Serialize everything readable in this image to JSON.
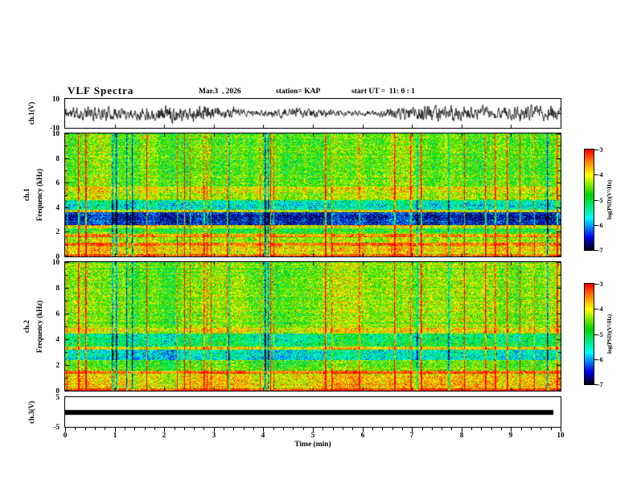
{
  "header": {
    "title": "VLF Spectra",
    "date": "Mar.3  , 2026",
    "station": "station= KAP",
    "start_ut": "start UT =  11: 0 : 1"
  },
  "axes": {
    "time_label": "Time (min)",
    "x_ticks": [
      "0",
      "1",
      "2",
      "3",
      "4",
      "5",
      "6",
      "7",
      "8",
      "9",
      "10"
    ],
    "freq_label": "Frequency (kHz)",
    "spec_y_ticks": [
      "10",
      "8",
      "6",
      "4",
      "2",
      "0"
    ],
    "ch1_wave_label": "ch.1(V)",
    "ch1_wave_ticks": [
      "10",
      "-10"
    ],
    "ch1_spec_label": "ch.1",
    "ch2_spec_label": "ch.2",
    "ch3_wave_label": "ch.3(V)",
    "ch3_wave_ticks": [
      "5",
      "-5"
    ]
  },
  "colorbar": {
    "label": "log(PSD)(V²/Hz)",
    "ticks": [
      "-3",
      "-4",
      "-5",
      "-6",
      "-7"
    ],
    "gradient": [
      [
        0,
        "#000008"
      ],
      [
        0.13,
        "#0000ee"
      ],
      [
        0.32,
        "#00ffff"
      ],
      [
        0.55,
        "#00d400"
      ],
      [
        0.75,
        "#ffff00"
      ],
      [
        0.9,
        "#ff7000"
      ],
      [
        1,
        "#ff0000"
      ]
    ]
  },
  "chart_data": [
    {
      "type": "line",
      "name": "ch1_waveform",
      "ylabel": "ch.1(V)",
      "xlabel": "Time (min)",
      "xlim": [
        0,
        10
      ],
      "ylim": [
        -10,
        10
      ],
      "seed": 11,
      "amp_mean": 3.0,
      "amp_mod": 2.0,
      "description": "dense broadband noise waveform centered at 0 V, typical excursions of 2-5 V with occasional bursts toward ±8 V over the 10-minute record"
    },
    {
      "type": "heatmap",
      "name": "ch1_spectrogram",
      "ylabel": "Frequency (kHz)",
      "xlabel": "Time (min)",
      "xlim": [
        0,
        10
      ],
      "ylim": [
        0,
        10
      ],
      "zlim": [
        -7,
        -3
      ],
      "zlabel": "log(PSD)(V²/Hz)",
      "colormap": "jet",
      "seed": 23,
      "streak_seed": 99,
      "base_level": -4.55,
      "noise_amp": 0.55,
      "streak_prob": 0.05,
      "streak_gain": 2.1,
      "bands": [
        [
          0,
          0.25,
          1.2
        ],
        [
          0.25,
          0.9,
          0.7
        ],
        [
          0.9,
          1.15,
          1.2
        ],
        [
          1.15,
          1.6,
          0.3
        ],
        [
          1.6,
          1.85,
          1.0
        ],
        [
          1.85,
          2.3,
          -0.2
        ],
        [
          2.3,
          2.6,
          0.6
        ],
        [
          2.6,
          3.6,
          -1.9
        ],
        [
          3.6,
          3.85,
          0.4
        ],
        [
          3.85,
          4.6,
          -1.0
        ],
        [
          4.6,
          5.1,
          0.3
        ],
        [
          5.1,
          5.7,
          0.45
        ],
        [
          5.7,
          10.01,
          0
        ]
      ],
      "description": "mostly green/yellow broadband hiss near -4.5 log(PSD); dark blue low-power band at 2.6-3.6 kHz; bright orange/red horizontal lines near 1.0, 1.7 and below 0.3 kHz; frequent red vertical sferic streaks across all frequencies"
    },
    {
      "type": "heatmap",
      "name": "ch2_spectrogram",
      "ylabel": "Frequency (kHz)",
      "xlabel": "Time (min)",
      "xlim": [
        0,
        10
      ],
      "ylim": [
        0,
        10
      ],
      "zlim": [
        -7,
        -3
      ],
      "zlabel": "log(PSD)(V²/Hz)",
      "colormap": "jet",
      "seed": 37,
      "streak_seed": 99,
      "base_level": -4.45,
      "noise_amp": 0.55,
      "streak_prob": 0.05,
      "streak_gain": 2.0,
      "bands": [
        [
          0,
          0.25,
          1.2
        ],
        [
          0.25,
          1.35,
          0.55
        ],
        [
          1.35,
          1.6,
          0.9
        ],
        [
          1.6,
          2.4,
          -0.15
        ],
        [
          2.4,
          3.2,
          -1.2
        ],
        [
          3.2,
          3.5,
          0.4
        ],
        [
          3.5,
          4.5,
          -0.75
        ],
        [
          4.5,
          5.0,
          0.3
        ],
        [
          5.0,
          10.01,
          0
        ]
      ],
      "description": "green/yellow broadband hiss similar to ch.1 but with a weaker blue band at 2.4-3.2 kHz; same red vertical sferic streaks aligned in time with ch.1"
    },
    {
      "type": "line",
      "name": "ch3_waveform",
      "ylabel": "ch.3(V)",
      "xlim": [
        0,
        10
      ],
      "ylim": [
        -5,
        5
      ],
      "bar_value": 0,
      "bar_thickness_V": 1.6,
      "x_end_fraction": 0.985,
      "description": "flat saturated trace at 0 V rendered as a thick solid black bar spanning nearly the full record"
    }
  ]
}
